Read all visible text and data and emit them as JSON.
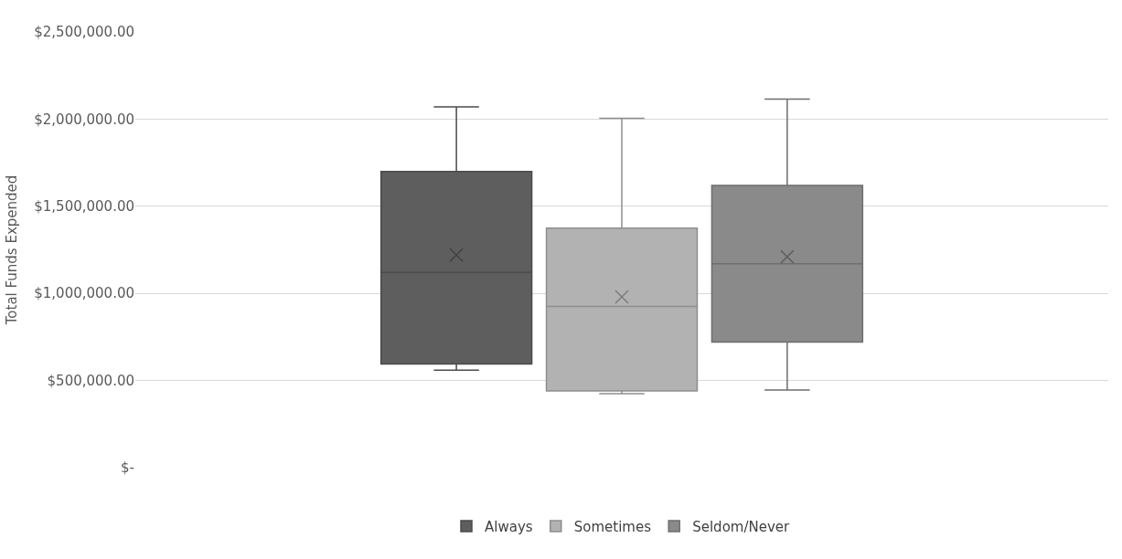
{
  "chart_data": {
    "type": "box",
    "ylabel": "Total Funds Expended",
    "categories": [
      null
    ],
    "series": [
      {
        "name": "Always",
        "color": "#5e5e5e",
        "boxes": [
          {
            "low": 560000,
            "q1": 595000,
            "median": 1120000,
            "q3": 1700000,
            "high": 2070000,
            "mean": 1220000
          }
        ]
      },
      {
        "name": "Sometimes",
        "color": "#b2b2b2",
        "boxes": [
          {
            "low": 425000,
            "q1": 440000,
            "median": 925000,
            "q3": 1375000,
            "high": 2005000,
            "mean": 980000
          }
        ]
      },
      {
        "name": "Seldom/Never",
        "color": "#8a8a8a",
        "boxes": [
          {
            "low": 445000,
            "q1": 720000,
            "median": 1170000,
            "q3": 1620000,
            "high": 2115000,
            "mean": 1210000
          }
        ]
      }
    ],
    "ylim": [
      0,
      2500000
    ],
    "yticks": [
      {
        "value": 0,
        "label": "$-"
      },
      {
        "value": 500000,
        "label": "$500,000.00"
      },
      {
        "value": 1000000,
        "label": "$1,000,000.00"
      },
      {
        "value": 1500000,
        "label": "$1,500,000.00"
      },
      {
        "value": 2000000,
        "label": "$2,000,000.00"
      },
      {
        "value": 2500000,
        "label": "$2,500,000.00"
      }
    ],
    "grid": "y",
    "legend": "bottom",
    "marker": "cross"
  }
}
